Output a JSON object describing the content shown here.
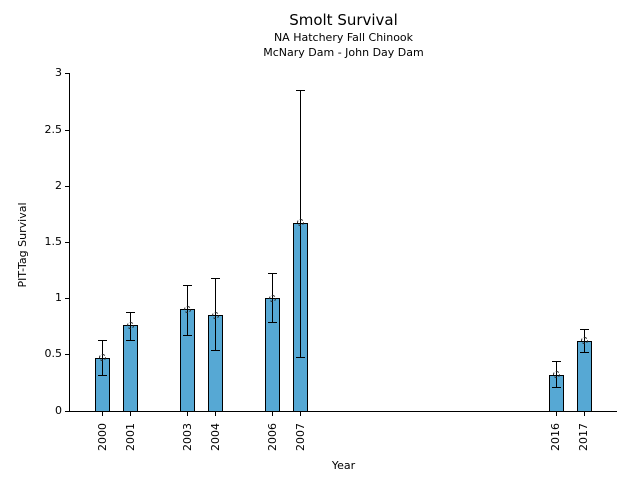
{
  "figure": {
    "title": "Smolt Survival",
    "subtitle1": "NA Hatchery Fall Chinook",
    "subtitle2": "McNary Dam - John Day Dam"
  },
  "chart_data": {
    "type": "bar",
    "title": "Smolt Survival",
    "subtitles": [
      "NA Hatchery Fall Chinook",
      "McNary Dam - John Day Dam"
    ],
    "xlabel": "Year",
    "ylabel": "PIT-Tag Survival",
    "categories": [
      2000,
      2001,
      2003,
      2004,
      2006,
      2007,
      2016,
      2017
    ],
    "xtick_labels": [
      "2000",
      "2001",
      "2003",
      "2004",
      "2006",
      "2007",
      "2016",
      "2017"
    ],
    "values": [
      0.47,
      0.76,
      0.9,
      0.85,
      1.0,
      1.67,
      0.32,
      0.62
    ],
    "error_low": [
      0.32,
      0.63,
      0.67,
      0.54,
      0.79,
      0.48,
      0.21,
      0.52
    ],
    "error_high": [
      0.63,
      0.88,
      1.12,
      1.18,
      1.22,
      2.85,
      0.44,
      0.73
    ],
    "yticks": [
      0,
      0.5,
      1,
      1.5,
      2,
      2.5,
      3
    ],
    "ytick_labels": [
      "0",
      "0.5",
      "1",
      "1.5",
      "2",
      "2.5",
      "3"
    ],
    "ylim": [
      0,
      3
    ],
    "xlim": [
      1998.85,
      2018.15
    ],
    "grid": false,
    "legend": null,
    "bar_color": "#56a8d4",
    "bar_edge_color": "#000000",
    "error_color": "#000000",
    "marker": "open-circle-dashed"
  }
}
